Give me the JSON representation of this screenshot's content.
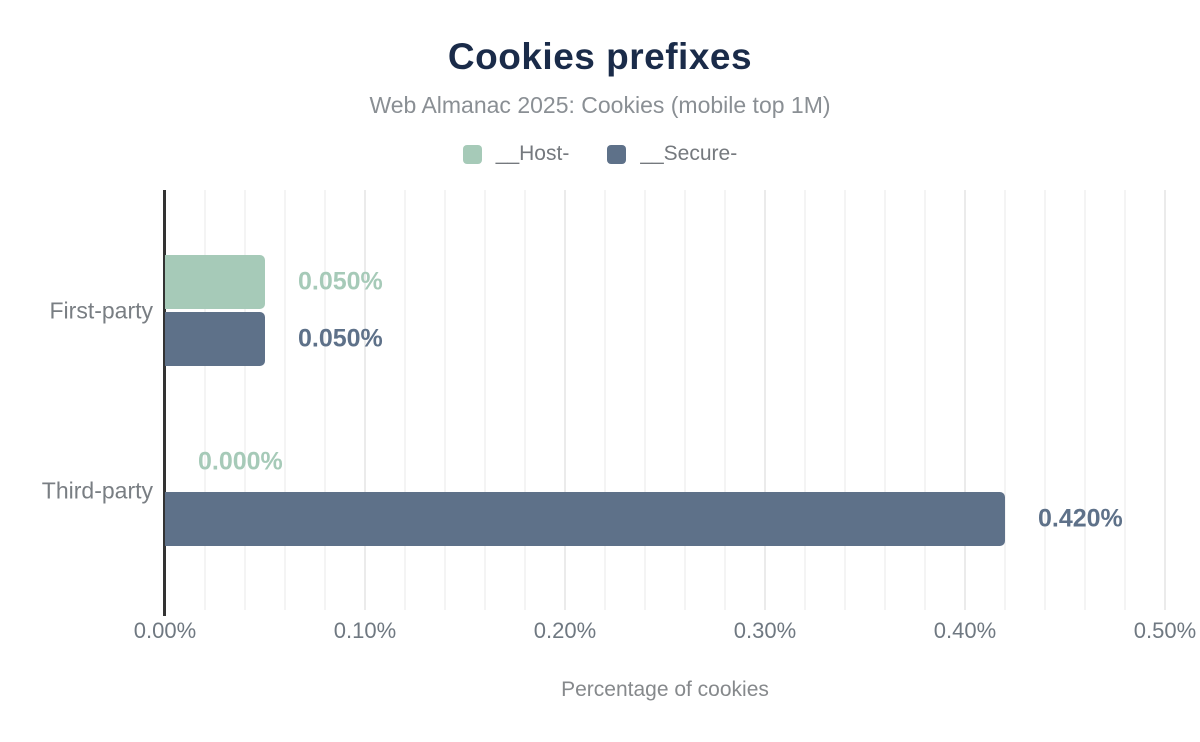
{
  "chart_data": {
    "type": "bar",
    "orientation": "horizontal",
    "title": "Cookies prefixes",
    "subtitle": "Web Almanac 2025: Cookies (mobile top 1M)",
    "xlabel": "Percentage of cookies",
    "categories": [
      "First-party",
      "Third-party"
    ],
    "series": [
      {
        "name": "__Host-",
        "color": "#a6cab8",
        "values": [
          0.05,
          0.0
        ],
        "value_labels": [
          "0.050%",
          "0.000%"
        ]
      },
      {
        "name": "__Secure-",
        "color": "#5e7189",
        "values": [
          0.05,
          0.42
        ],
        "value_labels": [
          "0.050%",
          "0.420%"
        ]
      }
    ],
    "xlim": [
      0,
      0.5
    ],
    "x_ticks": [
      "0.00%",
      "0.10%",
      "0.20%",
      "0.30%",
      "0.40%",
      "0.50%"
    ],
    "grid": {
      "show": true,
      "minor_step": 0.02,
      "major_step": 0.1,
      "direction": "vertical"
    },
    "legend_position": "top"
  },
  "colors": {
    "background": "#ffffff",
    "title": "#1a2b49",
    "subtitle": "#8a8f94",
    "axis_line": "#333333",
    "tick_text": "#6f7881",
    "category_text": "#797e83",
    "axis_title_text": "#86898c",
    "gridline_minor": "#f4f4f4",
    "gridline_major": "#ebebeb",
    "host_series": "#a6cab8",
    "secure_series": "#5e7189"
  }
}
